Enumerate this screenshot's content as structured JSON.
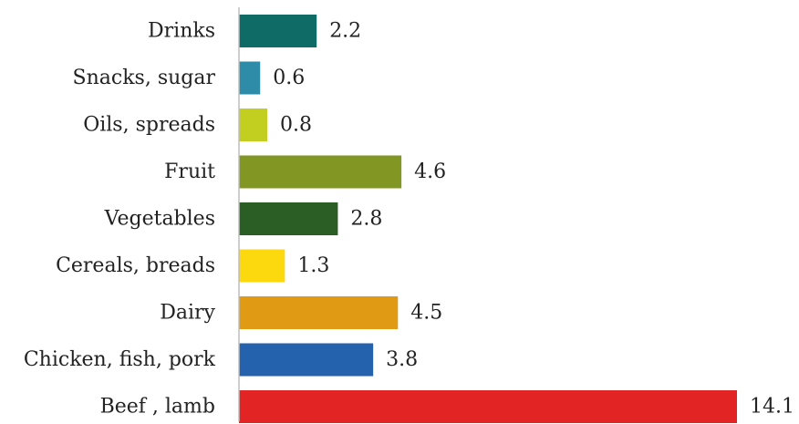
{
  "chart_data": {
    "type": "bar",
    "orientation": "horizontal",
    "categories": [
      "Drinks",
      "Snacks, sugar",
      "Oils, spreads",
      "Fruit",
      "Vegetables",
      "Cereals, breads",
      "Dairy",
      "Chicken, fish, pork",
      "Beef , lamb"
    ],
    "values": [
      2.2,
      0.6,
      0.8,
      4.6,
      2.8,
      1.3,
      4.5,
      3.8,
      14.1
    ],
    "value_labels": [
      "2.2",
      "0.6",
      "0.8",
      "4.6",
      "2.8",
      "1.3",
      "4.5",
      "3.8",
      "14.1"
    ],
    "colors": [
      "#0f6b66",
      "#2f8ca8",
      "#c3cf20",
      "#829623",
      "#2a5e25",
      "#fcd80f",
      "#e09a14",
      "#2562ad",
      "#e22424"
    ],
    "xlim": [
      0,
      14.1
    ],
    "grid": false,
    "legend": "none",
    "title": "",
    "xlabel": "",
    "ylabel": ""
  }
}
